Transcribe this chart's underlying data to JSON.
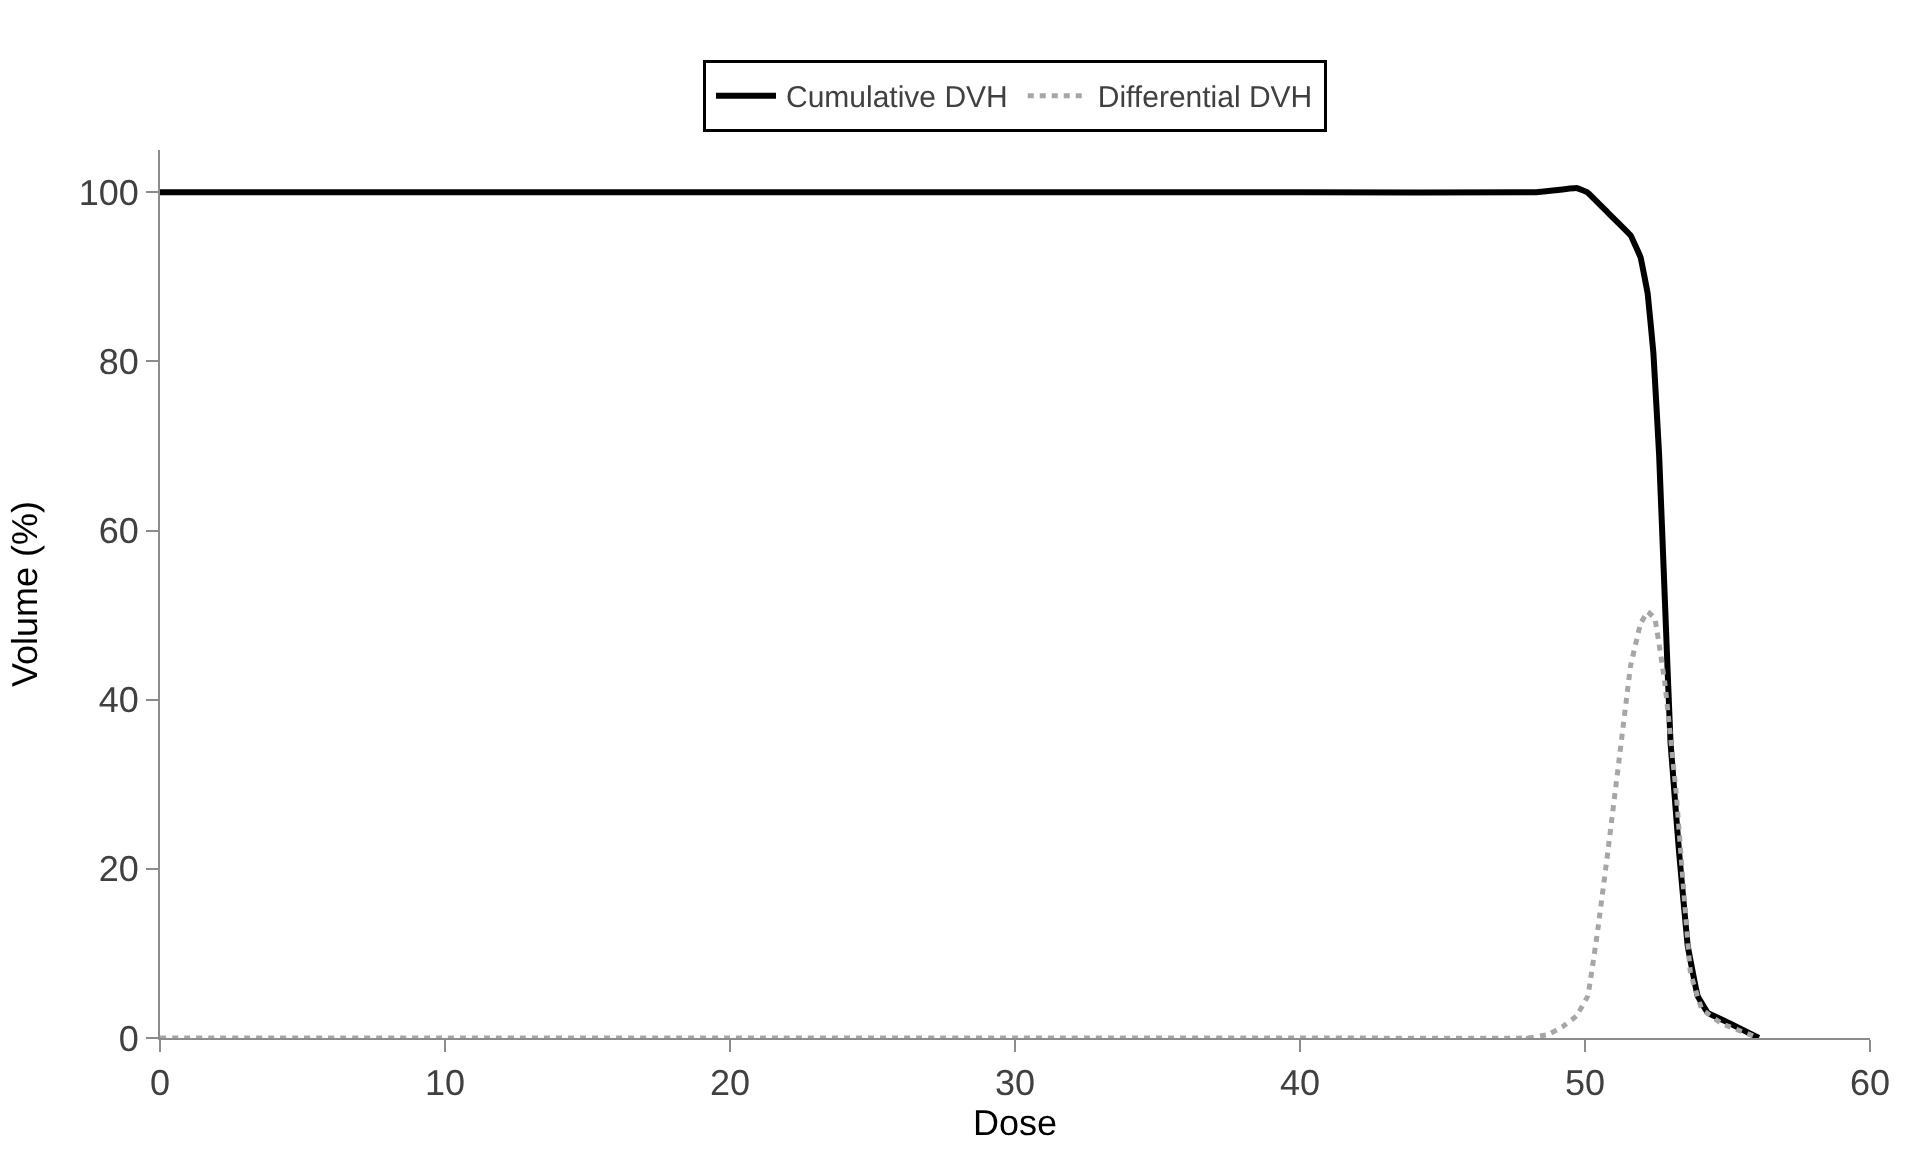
{
  "chart_data": {
    "type": "line",
    "xlabel": "Dose",
    "ylabel": "Volume (%)",
    "xlim": [
      0,
      60
    ],
    "ylim": [
      0,
      105
    ],
    "xticks": [
      0,
      10,
      20,
      30,
      40,
      50,
      60
    ],
    "yticks": [
      0,
      20,
      40,
      60,
      80,
      100
    ],
    "legend": "top",
    "marker": "none",
    "series": [
      {
        "name": "Cumulative DVH",
        "color": "#000000",
        "line_style": "solid",
        "x": [
          0,
          10,
          20,
          30,
          40,
          48.3,
          49.7,
          50.08,
          50.8,
          51.6,
          51.95,
          52.2,
          52.4,
          52.6,
          52.8,
          53.0,
          53.3,
          53.6,
          53.95,
          54.3,
          55.1,
          56.1
        ],
        "values": [
          100,
          100,
          100,
          100,
          100,
          100,
          100.5,
          100,
          97.6,
          94.9,
          92.3,
          88,
          81,
          69,
          52,
          35,
          22,
          11,
          5,
          3,
          1.7,
          0
        ]
      },
      {
        "name": "Differential DVH",
        "color": "#a6a6a6",
        "line_style": "dotted",
        "x": [
          0,
          10,
          20,
          30,
          40,
          48,
          48.7,
          49.2,
          49.7,
          50.1,
          50.45,
          50.8,
          51.2,
          51.6,
          51.95,
          52.2,
          52.45,
          52.8,
          53.2,
          53.45,
          53.7,
          54.1,
          54.8,
          56.1
        ],
        "values": [
          0,
          0,
          0,
          0,
          0,
          0,
          0.4,
          1.3,
          2.6,
          5,
          12.8,
          22,
          33,
          44,
          49,
          50.4,
          49.6,
          42,
          29,
          18,
          7.7,
          3.4,
          1.7,
          0
        ]
      }
    ]
  }
}
